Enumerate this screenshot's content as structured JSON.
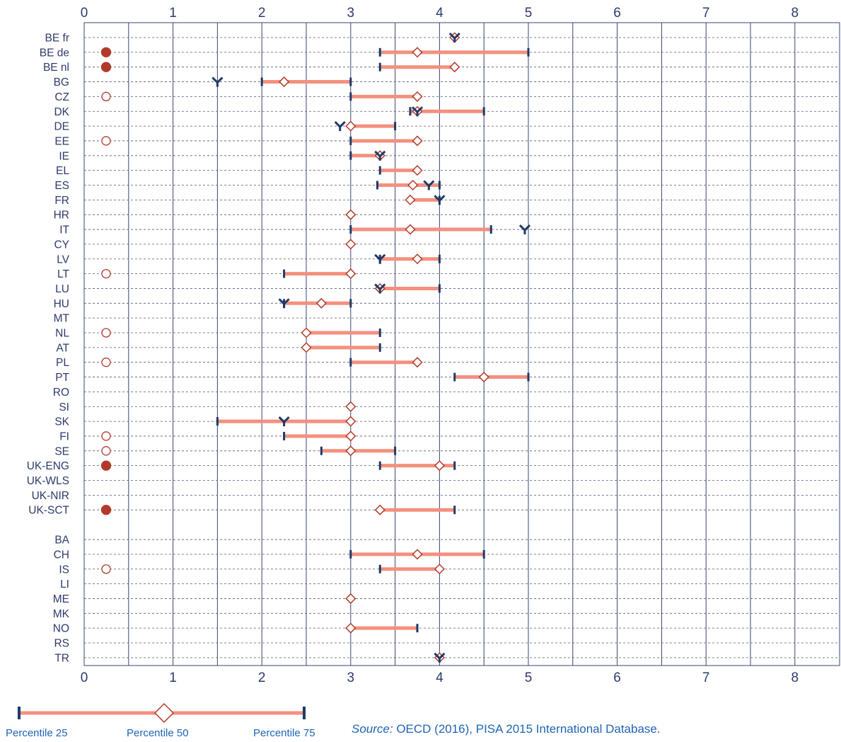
{
  "chart_data": {
    "type": "range-dot",
    "x_range": [
      0,
      8.5
    ],
    "x_ticks": [
      0,
      1,
      2,
      3,
      4,
      5,
      6,
      7,
      8
    ],
    "grid": true,
    "rows": [
      {
        "label": "BE fr",
        "dot": null,
        "p25": null,
        "p50": 4.17,
        "p75": null,
        "mark": 4.17
      },
      {
        "label": "BE de",
        "dot": "filled",
        "p25": 3.33,
        "p50": 3.75,
        "p75": 5.0,
        "mark": null
      },
      {
        "label": "BE nl",
        "dot": "filled",
        "p25": 3.33,
        "p50": 4.17,
        "p75": 4.17,
        "mark": null
      },
      {
        "label": "BG",
        "dot": null,
        "p25": 2.0,
        "p50": 2.25,
        "p75": 3.0,
        "mark": 1.5
      },
      {
        "label": "CZ",
        "dot": "open",
        "p25": 3.0,
        "p50": 3.75,
        "p75": 3.75,
        "mark": null
      },
      {
        "label": "DK",
        "dot": null,
        "p25": 3.67,
        "p50": 3.75,
        "p75": 4.5,
        "mark": 3.75
      },
      {
        "label": "DE",
        "dot": null,
        "p25": 3.0,
        "p50": 3.0,
        "p75": 3.5,
        "mark": 2.88
      },
      {
        "label": "EE",
        "dot": "open",
        "p25": 3.0,
        "p50": 3.75,
        "p75": 3.75,
        "mark": null
      },
      {
        "label": "IE",
        "dot": null,
        "p25": 3.0,
        "p50": 3.33,
        "p75": 3.33,
        "mark": 3.33
      },
      {
        "label": "EL",
        "dot": null,
        "p25": 3.33,
        "p50": 3.75,
        "p75": 3.75,
        "mark": null
      },
      {
        "label": "ES",
        "dot": null,
        "p25": 3.3,
        "p50": 3.7,
        "p75": 4.0,
        "mark": 3.88
      },
      {
        "label": "FR",
        "dot": null,
        "p25": 3.67,
        "p50": 3.67,
        "p75": 4.0,
        "mark": 4.0
      },
      {
        "label": "HR",
        "dot": null,
        "p25": 3.0,
        "p50": 3.0,
        "p75": 3.0,
        "mark": null
      },
      {
        "label": "IT",
        "dot": null,
        "p25": 3.0,
        "p50": 3.67,
        "p75": 4.58,
        "mark": 4.96
      },
      {
        "label": "CY",
        "dot": null,
        "p25": 3.0,
        "p50": 3.0,
        "p75": 3.0,
        "mark": null
      },
      {
        "label": "LV",
        "dot": null,
        "p25": 3.33,
        "p50": 3.75,
        "p75": 4.0,
        "mark": 3.33
      },
      {
        "label": "LT",
        "dot": "open",
        "p25": 2.25,
        "p50": 3.0,
        "p75": 3.0,
        "mark": null
      },
      {
        "label": "LU",
        "dot": null,
        "p25": 3.33,
        "p50": 3.33,
        "p75": 4.0,
        "mark": 3.33
      },
      {
        "label": "HU",
        "dot": null,
        "p25": 2.25,
        "p50": 2.67,
        "p75": 3.0,
        "mark": 2.25
      },
      {
        "label": "MT",
        "dot": null,
        "p25": null,
        "p50": null,
        "p75": null,
        "mark": null
      },
      {
        "label": "NL",
        "dot": "open",
        "p25": 2.5,
        "p50": 2.5,
        "p75": 3.33,
        "mark": null
      },
      {
        "label": "AT",
        "dot": null,
        "p25": 2.5,
        "p50": 2.5,
        "p75": 3.33,
        "mark": null
      },
      {
        "label": "PL",
        "dot": "open",
        "p25": 3.0,
        "p50": 3.75,
        "p75": 3.75,
        "mark": null
      },
      {
        "label": "PT",
        "dot": null,
        "p25": 4.17,
        "p50": 4.5,
        "p75": 5.0,
        "mark": null
      },
      {
        "label": "RO",
        "dot": null,
        "p25": null,
        "p50": null,
        "p75": null,
        "mark": null
      },
      {
        "label": "SI",
        "dot": null,
        "p25": 3.0,
        "p50": 3.0,
        "p75": 3.0,
        "mark": null
      },
      {
        "label": "SK",
        "dot": null,
        "p25": 1.5,
        "p50": 3.0,
        "p75": 3.0,
        "mark": 2.25
      },
      {
        "label": "FI",
        "dot": "open",
        "p25": 2.25,
        "p50": 3.0,
        "p75": 3.0,
        "mark": null
      },
      {
        "label": "SE",
        "dot": "open",
        "p25": 2.67,
        "p50": 3.0,
        "p75": 3.5,
        "mark": null
      },
      {
        "label": "UK-ENG",
        "dot": "filled",
        "p25": 3.33,
        "p50": 4.0,
        "p75": 4.17,
        "mark": null
      },
      {
        "label": "UK-WLS",
        "dot": null,
        "p25": null,
        "p50": null,
        "p75": null,
        "mark": null
      },
      {
        "label": "UK-NIR",
        "dot": null,
        "p25": null,
        "p50": null,
        "p75": null,
        "mark": null
      },
      {
        "label": "UK-SCT",
        "dot": "filled",
        "p25": 3.33,
        "p50": 3.33,
        "p75": 4.17,
        "mark": null
      },
      {
        "label": "BA",
        "dot": null,
        "p25": null,
        "p50": null,
        "p75": null,
        "mark": null,
        "gap_before": true
      },
      {
        "label": "CH",
        "dot": null,
        "p25": 3.0,
        "p50": 3.75,
        "p75": 4.5,
        "mark": null
      },
      {
        "label": "IS",
        "dot": "open",
        "p25": 3.33,
        "p50": 4.0,
        "p75": 4.0,
        "mark": null
      },
      {
        "label": "LI",
        "dot": null,
        "p25": null,
        "p50": null,
        "p75": null,
        "mark": null
      },
      {
        "label": "ME",
        "dot": null,
        "p25": 3.0,
        "p50": 3.0,
        "p75": 3.0,
        "mark": null
      },
      {
        "label": "MK",
        "dot": null,
        "p25": null,
        "p50": null,
        "p75": null,
        "mark": null
      },
      {
        "label": "NO",
        "dot": null,
        "p25": 3.0,
        "p50": 3.0,
        "p75": 3.75,
        "mark": null
      },
      {
        "label": "RS",
        "dot": null,
        "p25": null,
        "p50": null,
        "p75": null,
        "mark": null
      },
      {
        "label": "TR",
        "dot": null,
        "p25": 4.0,
        "p50": 4.0,
        "p75": 4.0,
        "mark": 4.0
      }
    ]
  },
  "legend": {
    "p25": "Percentile 25",
    "p50": "Percentile 50",
    "p75": "Percentile 75"
  },
  "source": {
    "prefix": "Source:",
    "text": " OECD (2016), PISA 2015 International Database."
  },
  "colors": {
    "bar": "#f4907f",
    "navy": "#1f3a66",
    "dot": "#b23a2a",
    "grid": "#3a4470",
    "text": "#2e3a6b",
    "blue_text": "#1f64b4"
  }
}
